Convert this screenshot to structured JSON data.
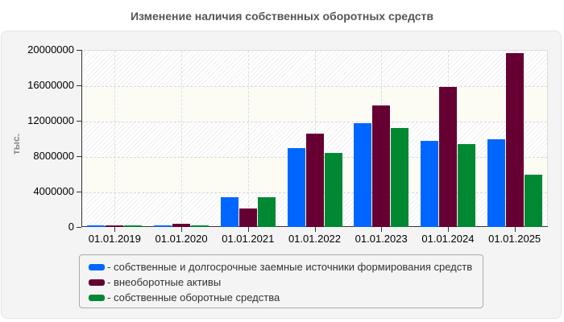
{
  "title": "Изменение наличия собственных оборотных средств",
  "chart_data": {
    "type": "bar",
    "title": "Изменение наличия собственных оборотных средств",
    "xlabel": "",
    "ylabel": "тыс.",
    "ylim": [
      0,
      20000000
    ],
    "yticks": [
      "0",
      "4000000",
      "8000000",
      "12000000",
      "16000000",
      "20000000"
    ],
    "categories": [
      "01.01.2019",
      "01.01.2020",
      "01.01.2021",
      "01.01.2022",
      "01.01.2023",
      "01.01.2024",
      "01.01.2025"
    ],
    "series": [
      {
        "name": "собственные и долгосрочные заемные источники формирования средств",
        "color": "#0066ff",
        "values": [
          50000,
          80000,
          3360000,
          8900000,
          11700000,
          9730000,
          9900000
        ]
      },
      {
        "name": "внеоборотные активы",
        "color": "#660033",
        "values": [
          50000,
          360000,
          2090000,
          10550000,
          13700000,
          15800000,
          19600000
        ]
      },
      {
        "name": "собственные оборотные средства",
        "color": "#008833",
        "values": [
          50000,
          80000,
          3360000,
          8360000,
          11200000,
          9360000,
          5900000
        ]
      }
    ],
    "grid": true,
    "legend_position": "bottom"
  }
}
